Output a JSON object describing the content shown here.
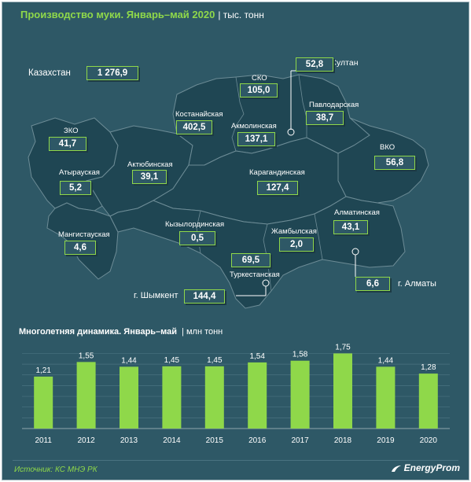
{
  "header": {
    "title": "Производство муки. Январь–май 2020",
    "unit": "| тыс. тонн"
  },
  "map": {
    "total_label": "Казахстан",
    "total_value": "1 276,9",
    "regions": {
      "zko": {
        "name": "ЗКО",
        "value": "41,7"
      },
      "atyrau": {
        "name": "Атырауская",
        "value": "5,2"
      },
      "mangistau": {
        "name": "Мангистауская",
        "value": "4,6"
      },
      "aktobe": {
        "name": "Актюбинская",
        "value": "39,1"
      },
      "kostanay": {
        "name": "Костанайская",
        "value": "402,5"
      },
      "sko": {
        "name": "СКО",
        "value": "105,0"
      },
      "akmola": {
        "name": "Акмолинская",
        "value": "137,1"
      },
      "nursultan": {
        "name": "г. Нур-Султан",
        "value": "52,8"
      },
      "pavlodar": {
        "name": "Павлодарская",
        "value": "38,7"
      },
      "vko": {
        "name": "ВКО",
        "value": "56,8"
      },
      "karaganda": {
        "name": "Карагандинская",
        "value": "127,4"
      },
      "kyzylorda": {
        "name": "Кызылординская",
        "value": "0,5"
      },
      "zhambyl": {
        "name": "Жамбылская",
        "value": "2,0"
      },
      "almaty_obl": {
        "name": "Алматинская",
        "value": "43,1"
      },
      "almaty": {
        "name": "г. Алматы",
        "value": "6,6"
      },
      "turkestan": {
        "name": "Туркестанская",
        "value": "69,5"
      },
      "shymkent": {
        "name": "г. Шымкент",
        "value": "144,4"
      }
    }
  },
  "chart_title": "Многолетняя динамика. Январь–май",
  "chart_unit": "| млн тонн",
  "chart_data": {
    "type": "bar",
    "categories": [
      "2011",
      "2012",
      "2013",
      "2014",
      "2015",
      "2016",
      "2017",
      "2018",
      "2019",
      "2020"
    ],
    "values": [
      1.21,
      1.55,
      1.44,
      1.45,
      1.45,
      1.54,
      1.58,
      1.75,
      1.44,
      1.28
    ],
    "data_labels": [
      "1,21",
      "1,55",
      "1,44",
      "1,45",
      "1,45",
      "1,54",
      "1,58",
      "1,75",
      "1,44",
      "1,28"
    ],
    "bar_color": "#8fd84a",
    "grid": true
  },
  "footer": {
    "source": "Источник: КС МНЭ РК",
    "logo": "EnergyProm"
  },
  "colors": {
    "background": "#2e5866",
    "map_fill": "#1f4653",
    "accent": "#8fd84a"
  }
}
